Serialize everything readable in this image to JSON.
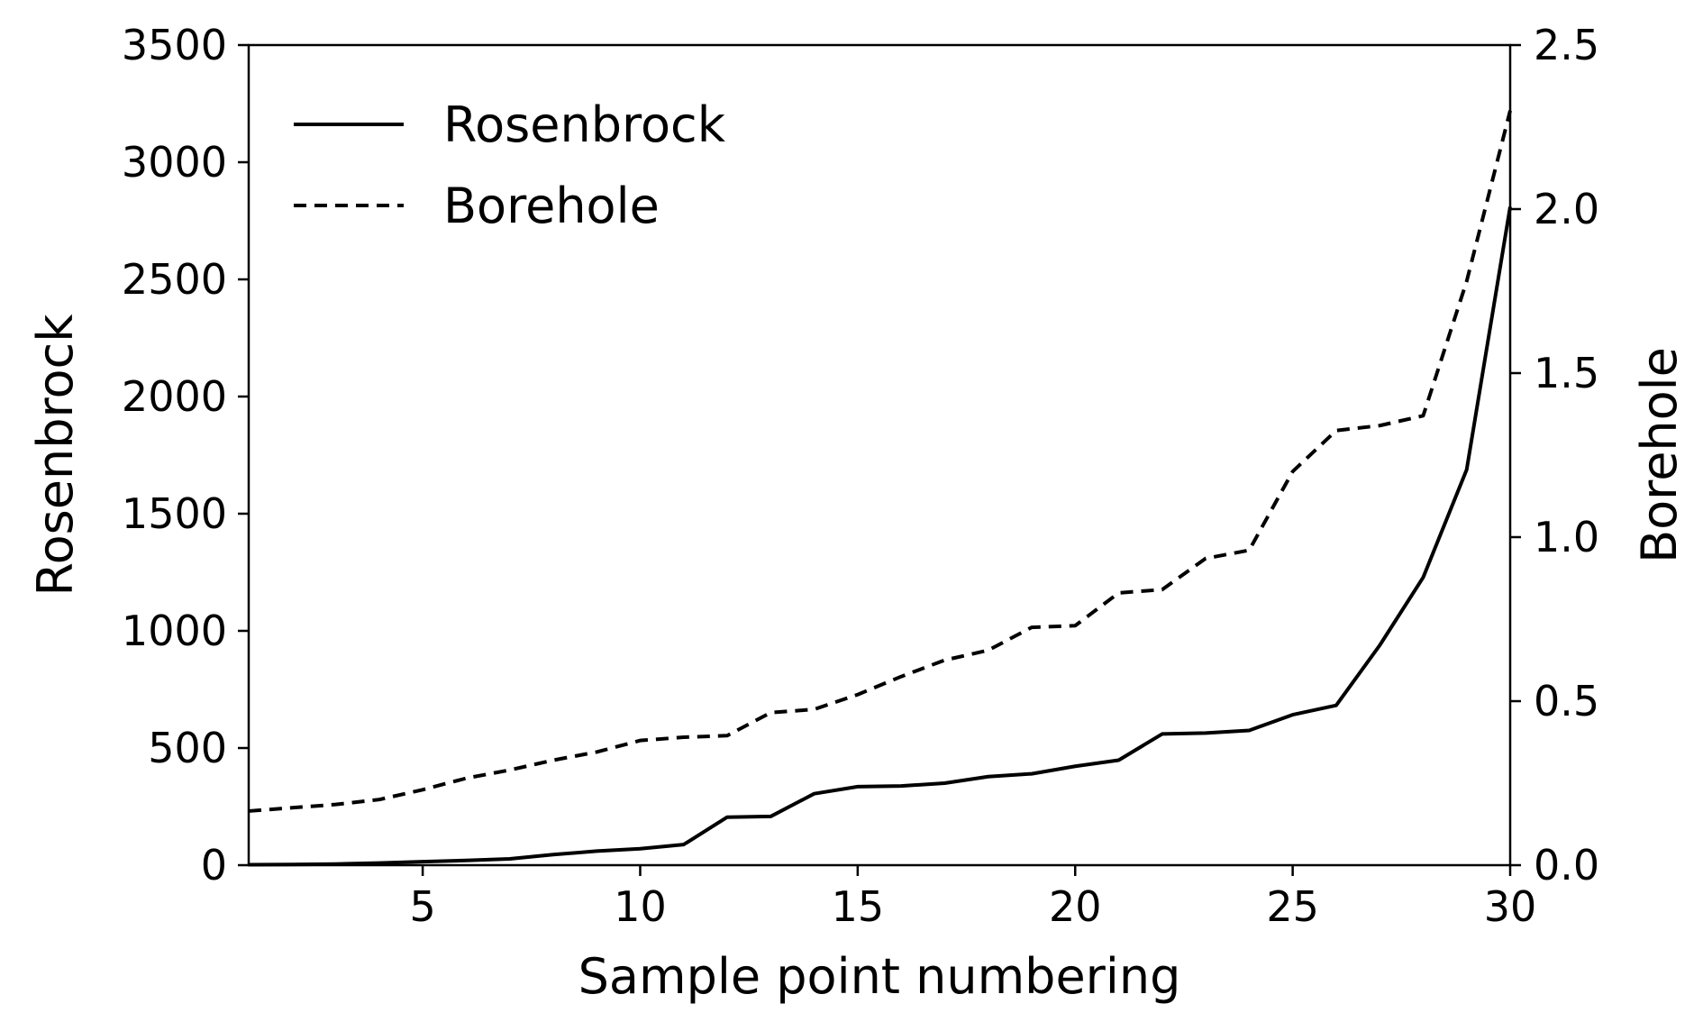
{
  "chart_data": {
    "type": "line",
    "title": "",
    "xlabel": "Sample point numbering",
    "ylabel": "Rosenbrock",
    "y2label": "Borehole",
    "xlim": [
      1,
      30
    ],
    "ylim": [
      0,
      3500
    ],
    "y2lim": [
      0,
      2.5
    ],
    "x_ticks": [
      5,
      10,
      15,
      20,
      25,
      30
    ],
    "y_ticks": [
      0,
      500,
      1000,
      1500,
      2000,
      2500,
      3000,
      3500
    ],
    "y2_ticks": [
      "0.0",
      "0.5",
      "1.0",
      "1.5",
      "2.0",
      "2.5"
    ],
    "grid": false,
    "legend_position": "top-left",
    "x": [
      1,
      2,
      3,
      4,
      5,
      6,
      7,
      8,
      9,
      10,
      11,
      12,
      13,
      14,
      15,
      16,
      17,
      18,
      19,
      20,
      21,
      22,
      23,
      24,
      25,
      26,
      27,
      28,
      29,
      30
    ],
    "series": [
      {
        "name": "Rosenbrock",
        "axis": "left",
        "style": "solid",
        "color": "#000000",
        "values": [
          2,
          3,
          5,
          9,
          15,
          20,
          27,
          45,
          60,
          70,
          88,
          205,
          208,
          305,
          335,
          338,
          350,
          378,
          390,
          422,
          448,
          560,
          564,
          575,
          642,
          682,
          938,
          1228,
          1688,
          2810
        ]
      },
      {
        "name": "Borehole",
        "axis": "right",
        "style": "dashed",
        "color": "#000000",
        "values": [
          0.165,
          0.175,
          0.185,
          0.2,
          0.23,
          0.265,
          0.29,
          0.32,
          0.345,
          0.38,
          0.39,
          0.395,
          0.465,
          0.475,
          0.52,
          0.575,
          0.625,
          0.655,
          0.725,
          0.73,
          0.83,
          0.84,
          0.935,
          0.96,
          1.2,
          1.325,
          1.34,
          1.37,
          1.78,
          2.3
        ]
      }
    ]
  }
}
